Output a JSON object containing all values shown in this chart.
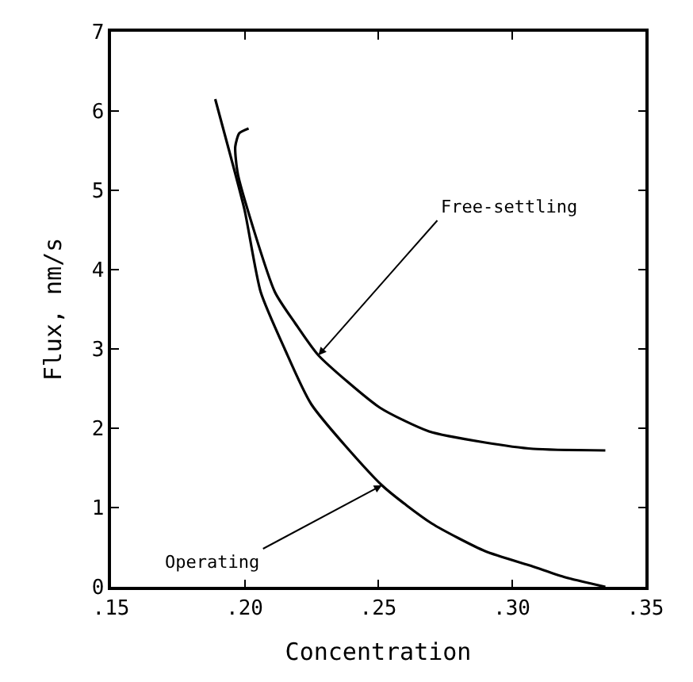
{
  "chart_data": {
    "type": "line",
    "xlabel": "Concentration",
    "ylabel": "Flux, nm/s",
    "xlim": [
      0.15,
      0.35
    ],
    "xticks": [
      {
        "value": 0.15,
        "label": ".15"
      },
      {
        "value": 0.2,
        "label": ".20"
      },
      {
        "value": 0.25,
        "label": ".25"
      },
      {
        "value": 0.3,
        "label": ".30"
      },
      {
        "value": 0.35,
        "label": ".35"
      }
    ],
    "ylim": [
      0,
      7
    ],
    "yticks": [
      0,
      1,
      2,
      3,
      4,
      5,
      6,
      7
    ],
    "marker": "none",
    "line_style": "solid",
    "series": [
      {
        "color": "#000000",
        "x": [
          0.189,
          0.195,
          0.2,
          0.206,
          0.215,
          0.225,
          0.2514,
          0.27,
          0.29,
          0.3076,
          0.32,
          0.335
        ],
        "values": [
          6.15,
          5.4,
          4.75,
          3.72,
          3.0,
          2.3,
          1.28,
          0.8,
          0.45,
          0.26,
          0.12,
          0.0
        ]
      },
      {
        "color": "#000000",
        "x": [
          0.2015,
          0.198,
          0.1965,
          0.1975,
          0.2113,
          0.219,
          0.2276,
          0.2506,
          0.269,
          0.29,
          0.308,
          0.335
        ],
        "values": [
          5.78,
          5.72,
          5.55,
          5.2,
          3.72,
          3.32,
          2.92,
          2.26,
          1.96,
          1.82,
          1.74,
          1.72
        ]
      }
    ],
    "annotations": [
      {
        "text": "Free-settling",
        "x": 0.2276,
        "y": 2.92
      },
      {
        "text": "Operating",
        "x": 0.2514,
        "y": 1.28
      }
    ]
  }
}
